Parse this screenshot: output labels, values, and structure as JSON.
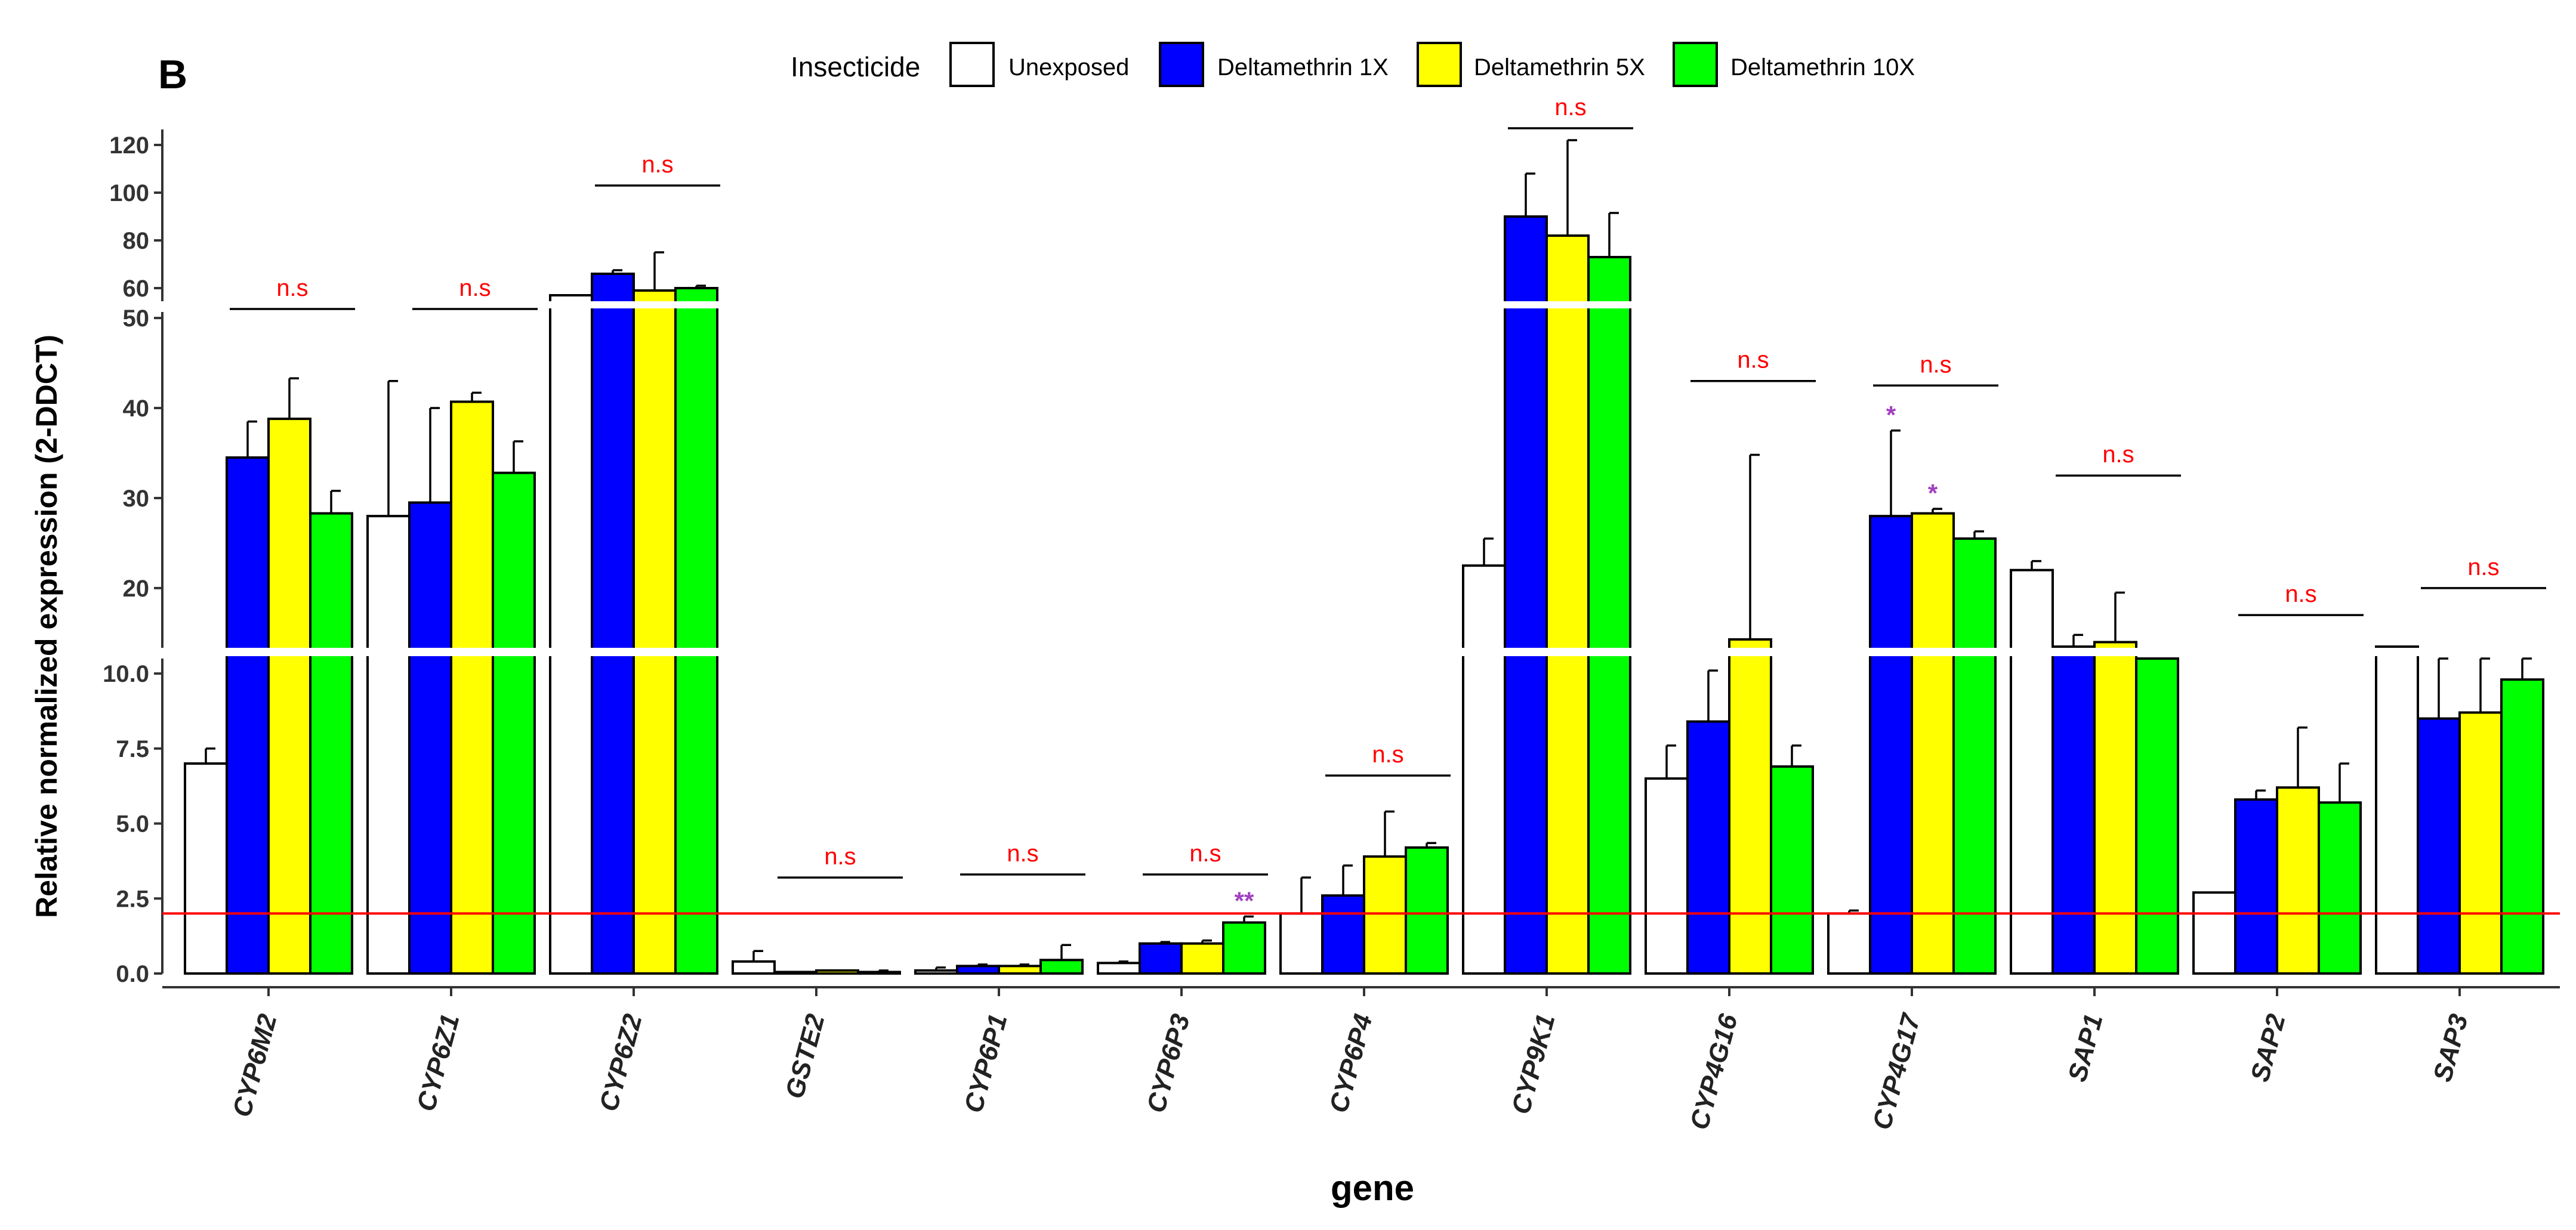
{
  "chart_data": {
    "type": "bar",
    "panel_label": "B",
    "ylabel": "Relative normalized expression (2-DDCT)",
    "xlabel": "gene",
    "legend": {
      "title": "Insecticide",
      "entries": [
        "Unexposed",
        "Deltamethrin 1X",
        "Deltamethrin 5X",
        "Deltamethrin 10X"
      ]
    },
    "colors": [
      "#ffffff",
      "#0000ff",
      "#ffff00",
      "#00ff00"
    ],
    "significance_color": "#ff0000",
    "star_color": "#a040c0",
    "threshold": 2,
    "threshold_color": "#ff0000",
    "y_segments": [
      {
        "range": [
          0,
          10.5
        ],
        "ticks": [
          "0.0",
          "2.5",
          "5.0",
          "7.5",
          "10.0"
        ],
        "tick_values": [
          0,
          2.5,
          5,
          7.5,
          10
        ]
      },
      {
        "range": [
          13.5,
          51
        ],
        "ticks": [
          "20",
          "30",
          "40",
          "50"
        ],
        "tick_values": [
          20,
          30,
          40,
          50
        ]
      },
      {
        "range": [
          55,
          127
        ],
        "ticks": [
          "60",
          "80",
          "100",
          "120"
        ],
        "tick_values": [
          60,
          80,
          100,
          120
        ]
      }
    ],
    "categories": [
      "CYP6M2",
      "CYP6Z1",
      "CYP6Z2",
      "GSTE2",
      "CYP6P1",
      "CYP6P3",
      "CYP6P4",
      "CYP9K1",
      "CYP4G16",
      "CYP4G17",
      "SAP1",
      "SAP2",
      "SAP3"
    ],
    "series": [
      {
        "name": "Unexposed",
        "values": [
          7.0,
          28.0,
          57.0,
          0.4,
          0.1,
          0.35,
          2.0,
          22.5,
          6.5,
          2.0,
          22.0,
          2.7,
          13.5
        ],
        "errors": [
          0.5,
          15.0,
          0,
          0.35,
          0.1,
          0.05,
          1.2,
          3.0,
          1.1,
          0.1,
          1.0,
          0,
          0
        ]
      },
      {
        "name": "Deltamethrin 1X",
        "values": [
          34.5,
          29.5,
          66.0,
          0.05,
          0.25,
          1.0,
          2.6,
          90.0,
          8.4,
          28.0,
          13.5,
          5.8,
          8.5
        ],
        "errors": [
          4.0,
          10.5,
          1.5,
          0,
          0.05,
          0.05,
          1.0,
          18.0,
          1.7,
          9.5,
          1.3,
          0.3,
          2.5
        ]
      },
      {
        "name": "Deltamethrin 5X",
        "values": [
          38.8,
          40.7,
          59.0,
          0.1,
          0.25,
          1.0,
          3.9,
          82.0,
          14.3,
          28.3,
          14.0,
          6.2,
          8.7
        ],
        "errors": [
          4.5,
          1.0,
          16.0,
          0,
          0.05,
          0.1,
          1.5,
          40.0,
          20.5,
          0.5,
          5.5,
          2.0,
          2.0
        ]
      },
      {
        "name": "Deltamethrin 10X",
        "values": [
          28.3,
          32.8,
          60.0,
          0.05,
          0.45,
          1.7,
          4.2,
          73.0,
          6.9,
          25.5,
          11.0,
          5.7,
          9.8
        ],
        "errors": [
          2.5,
          3.5,
          1.0,
          0.05,
          0.5,
          0.2,
          0.15,
          18.5,
          0.7,
          0.8,
          1.5,
          1.3,
          0.7
        ]
      }
    ],
    "annotations": [
      {
        "category": "CYP6M2",
        "text": "n.s",
        "line_value": 51
      },
      {
        "category": "CYP6Z1",
        "text": "n.s",
        "line_value": 51
      },
      {
        "category": "CYP6Z2",
        "text": "n.s",
        "line_value": 103
      },
      {
        "category": "GSTE2",
        "text": "n.s",
        "line_value": 3.2
      },
      {
        "category": "CYP6P1",
        "text": "n.s",
        "line_value": 3.3
      },
      {
        "category": "CYP6P3",
        "text": "n.s",
        "line_value": 3.3
      },
      {
        "category": "CYP6P4",
        "text": "n.s",
        "line_value": 6.6
      },
      {
        "category": "CYP9K1",
        "text": "n.s",
        "line_value": 132
      },
      {
        "category": "CYP4G16",
        "text": "n.s",
        "line_value": 43
      },
      {
        "category": "CYP4G17",
        "text": "n.s",
        "line_value": 42.5
      },
      {
        "category": "SAP1",
        "text": "n.s",
        "line_value": 32.5
      },
      {
        "category": "SAP2",
        "text": "n.s",
        "line_value": 17
      },
      {
        "category": "SAP3",
        "text": "n.s",
        "line_value": 20
      }
    ],
    "stars": [
      {
        "category": "CYP6P3",
        "series": 3,
        "text": "**"
      },
      {
        "category": "CYP4G17",
        "series": 1,
        "text": "*"
      },
      {
        "category": "CYP4G17",
        "series": 2,
        "text": "*"
      }
    ]
  }
}
